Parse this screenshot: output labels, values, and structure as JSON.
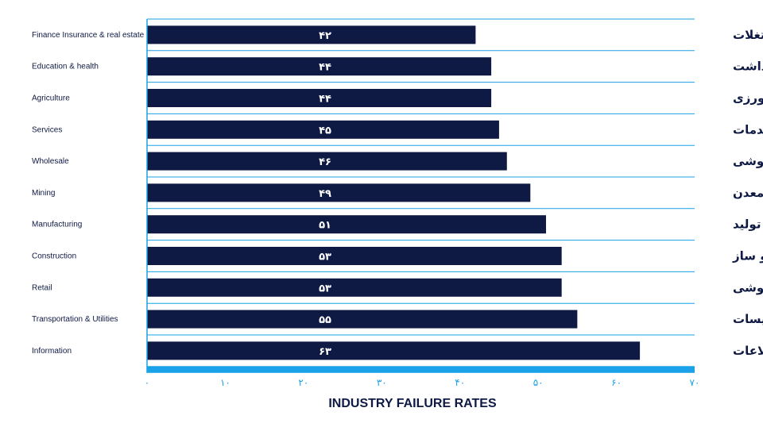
{
  "colors": {
    "bar": "#0e1a44",
    "accent": "#1ba1e8",
    "text": "#0e1a44",
    "value_text": "#ffffff"
  },
  "chart_data": {
    "type": "bar",
    "orientation": "horizontal",
    "title": "INDUSTRY FAILURE RATES",
    "categories_en": [
      "Finance Insurance & real estate",
      "Education & health",
      "Agriculture",
      "Services",
      "Wholesale",
      "Mining",
      "Manufacturing",
      "Construction",
      "Retail",
      "Transportation & Utilities",
      "Information"
    ],
    "categories_fa": [
      "بیمه، املاک و مستغلات",
      "آموزش و بهداشت",
      "کشاورزی",
      "خدمات",
      "عمده فروشی",
      "معدن",
      "ساخت و تولید",
      "ساخت و ساز",
      "خرده فروشی",
      "حمل و نقل و تاسیسات",
      "اطلاعات"
    ],
    "values": [
      42,
      44,
      44,
      45,
      46,
      49,
      51,
      53,
      53,
      55,
      63
    ],
    "value_labels": [
      "۴۲",
      "۴۴",
      "۴۴",
      "۴۵",
      "۴۶",
      "۴۹",
      "۵۱",
      "۵۳",
      "۵۳",
      "۵۵",
      "۶۳"
    ],
    "xlim": [
      0,
      70
    ],
    "xticks": [
      0,
      10,
      20,
      30,
      40,
      50,
      60,
      70
    ],
    "xtick_labels": [
      "۰",
      "۱۰",
      "۲۰",
      "۳۰",
      "۴۰",
      "۵۰",
      "۶۰",
      "۷۰"
    ],
    "grid": "horizontal separators between rows"
  }
}
